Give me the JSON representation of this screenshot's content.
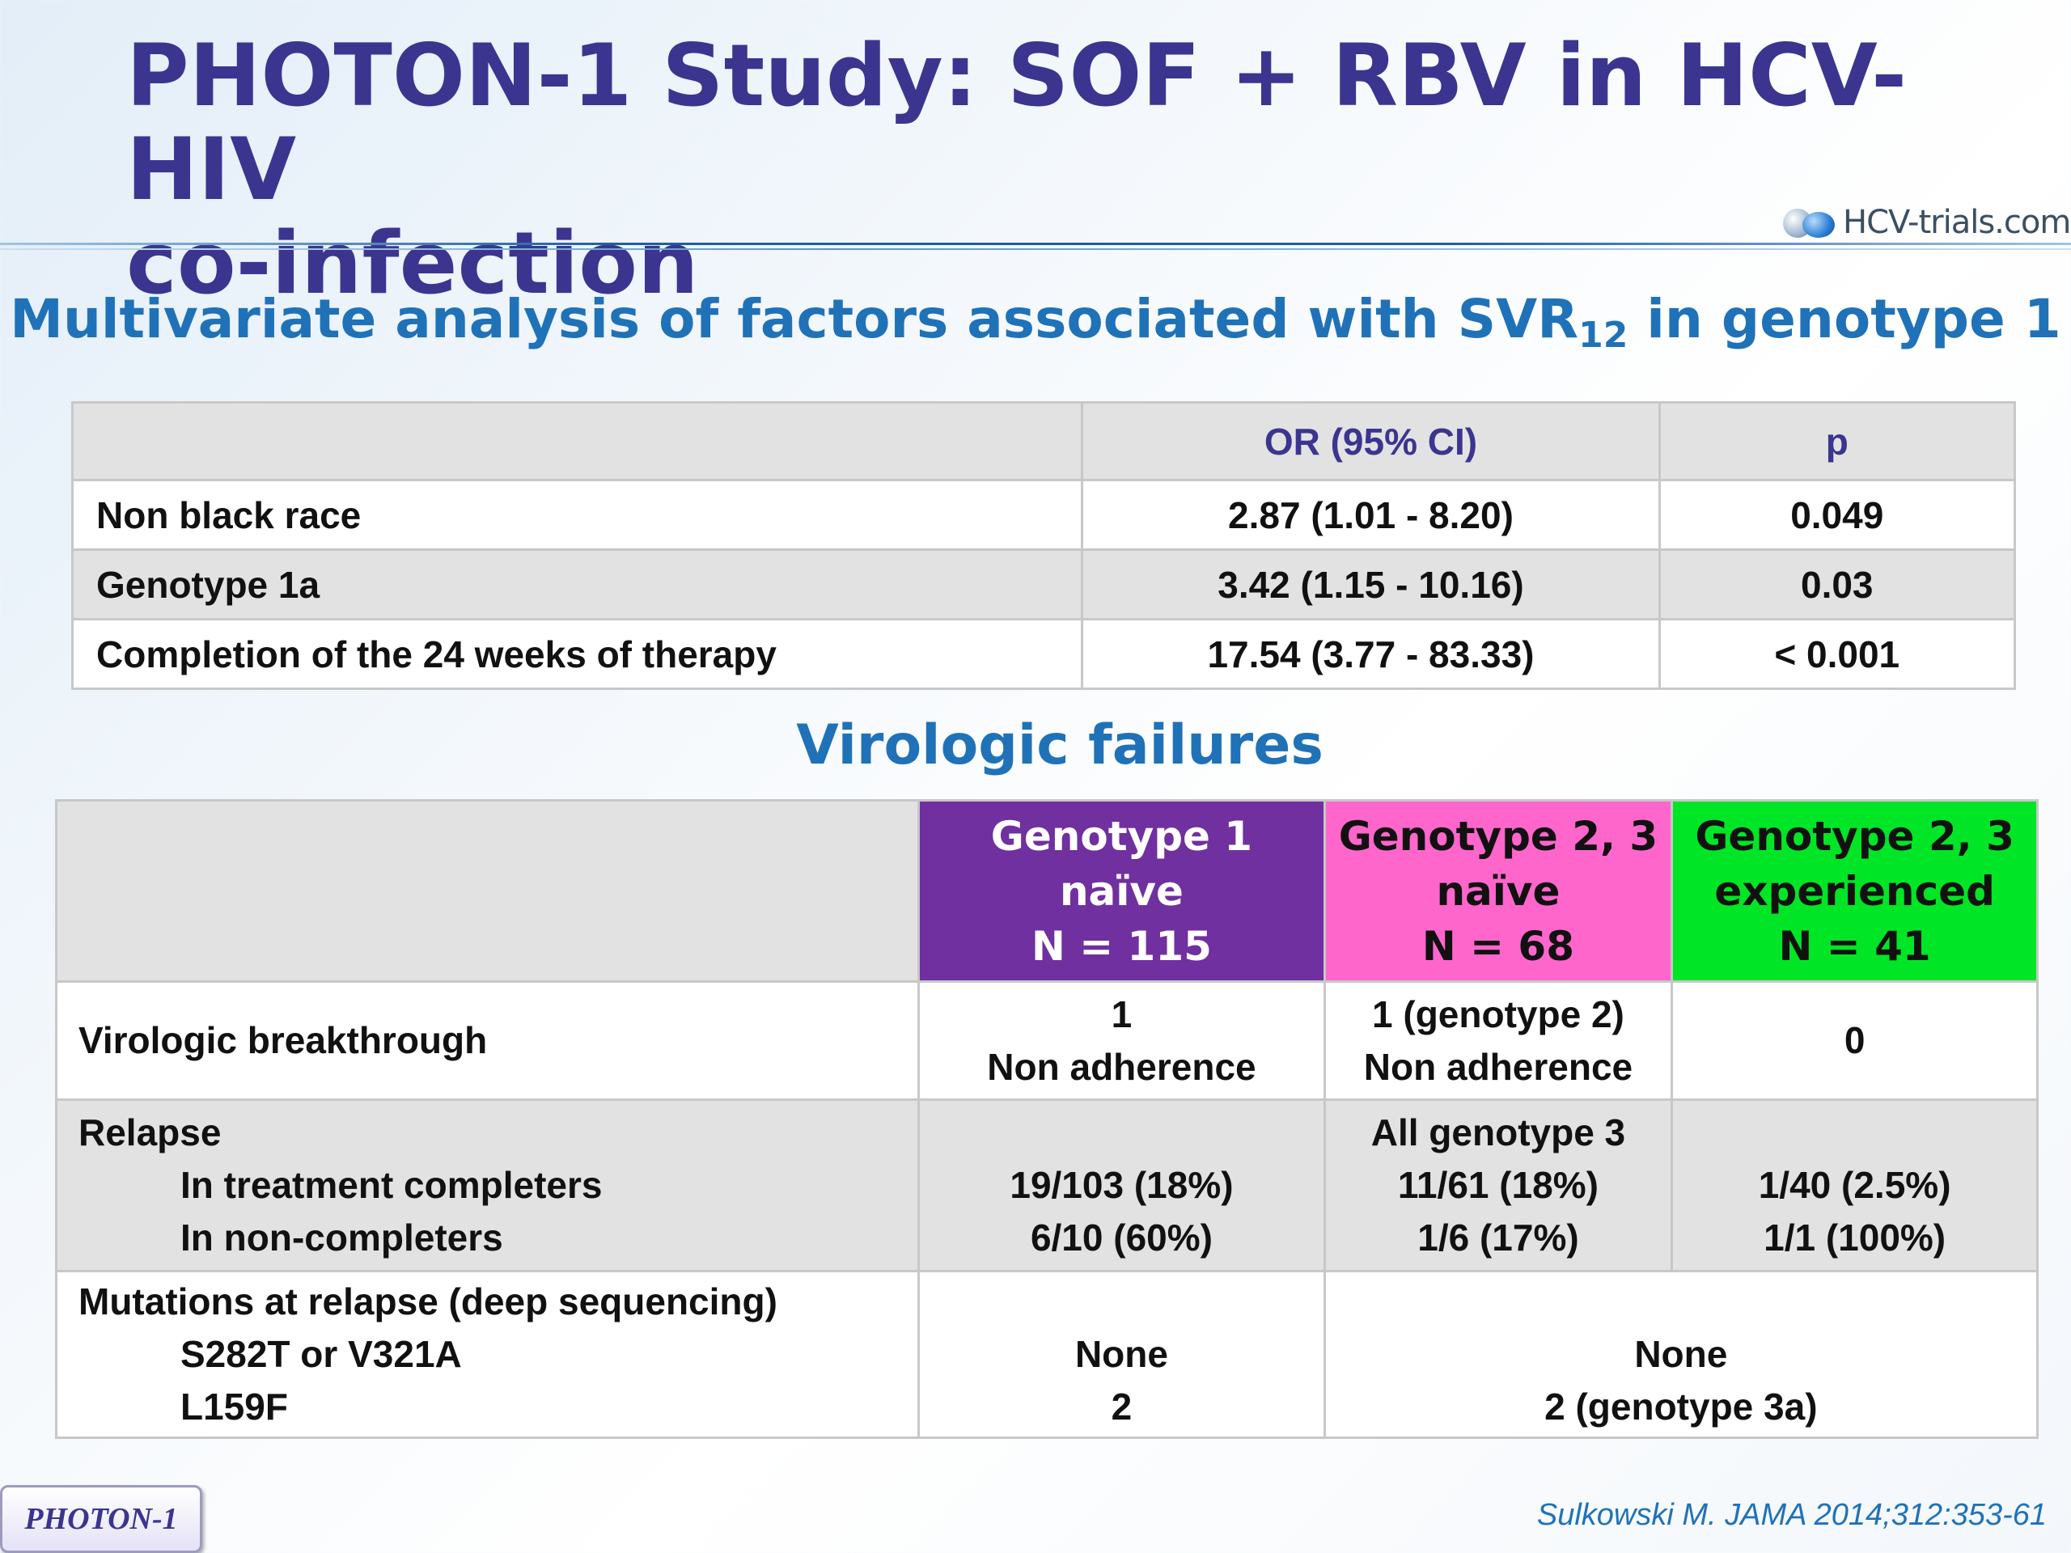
{
  "header": {
    "title_line1": "PHOTON-1 Study: SOF + RBV in HCV-HIV",
    "title_line2": "co-infection",
    "logo_text": "HCV-trials.com"
  },
  "section1": {
    "title_prefix": "Multivariate analysis of factors associated with SVR",
    "title_sub": "12",
    "title_suffix": " in genotype 1"
  },
  "table1": {
    "columns": [
      "",
      "OR (95% CI)",
      "p"
    ],
    "rows": [
      {
        "factor": "Non black race",
        "or": "2.87 (1.01 - 8.20)",
        "p": "0.049"
      },
      {
        "factor": "Genotype 1a",
        "or": "3.42 (1.15 - 10.16)",
        "p": "0.03"
      },
      {
        "factor": "Completion of the 24 weeks of therapy",
        "or": "17.54 (3.77 - 83.33)",
        "p": "< 0.001"
      }
    ]
  },
  "section2": {
    "title": "Virologic failures"
  },
  "table2": {
    "headers": {
      "g1": [
        "Genotype 1",
        "naïve",
        "N = 115"
      ],
      "g23n": [
        "Genotype 2, 3",
        "naïve",
        "N = 68"
      ],
      "g23e": [
        "Genotype 2, 3",
        "experienced",
        "N = 41"
      ]
    },
    "header_colors": {
      "g1": "#7030a0",
      "g23n": "#ff66cc",
      "g23e": "#00e626"
    },
    "breakthrough": {
      "label": "Virologic breakthrough",
      "g1": [
        "1",
        "Non adherence"
      ],
      "g23n": [
        "1 (genotype 2)",
        "Non adherence"
      ],
      "g23e": "0"
    },
    "relapse": {
      "label": "Relapse",
      "sub1": "In treatment completers",
      "sub2": "In non-completers",
      "g1": [
        "19/103 (18%)",
        "6/10 (60%)"
      ],
      "g23n": [
        "All genotype 3",
        "11/61 (18%)",
        "1/6 (17%)"
      ],
      "g23e": [
        "1/40 (2.5%)",
        "1/1 (100%)"
      ]
    },
    "mutations": {
      "label": "Mutations at relapse (deep sequencing)",
      "sub1": "S282T or V321A",
      "sub2": "L159F",
      "g1": [
        "None",
        "2"
      ],
      "g23": [
        "None",
        "2 (genotype 3a)"
      ]
    }
  },
  "footer": {
    "badge": "PHOTON-1",
    "citation": "Sulkowski M. JAMA 2014;312:353-61"
  }
}
